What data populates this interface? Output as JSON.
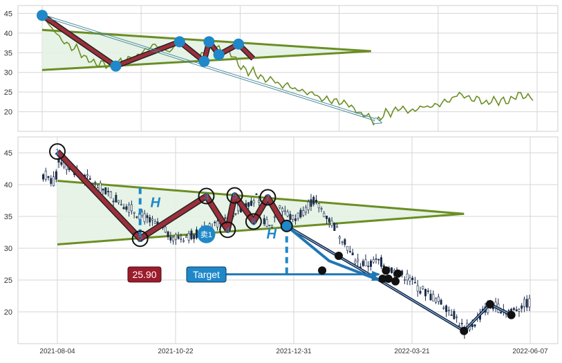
{
  "colors": {
    "line_green": "#6b8e23",
    "triangle_fill": "#e3f2e3",
    "zigzag_fill": "#9b2f3a",
    "marker_blue": "#1f88c9",
    "arrow_blue": "#1f77b4",
    "dark_marker": "#111111",
    "candle": "#1a2a4a",
    "grid": "#d5d5d5",
    "label_red_bg": "#9b1c2c",
    "label_blue_bg": "#1f88c9"
  },
  "chart_data": [
    {
      "type": "line",
      "name": "overview",
      "yticks": [
        20,
        25,
        30,
        35,
        40,
        45
      ],
      "ylim": [
        15,
        47
      ],
      "xlim": [
        0,
        100
      ],
      "price": [
        [
          0,
          44.5
        ],
        [
          1,
          43
        ],
        [
          2,
          41
        ],
        [
          3,
          40
        ],
        [
          4,
          38
        ],
        [
          5,
          37.5
        ],
        [
          6,
          36
        ],
        [
          7,
          36.5
        ],
        [
          8,
          34.5
        ],
        [
          9,
          33.5
        ],
        [
          10,
          33
        ],
        [
          11,
          32
        ],
        [
          12,
          32.5
        ],
        [
          13,
          31.8
        ],
        [
          14,
          32
        ],
        [
          15,
          31.5
        ],
        [
          16,
          33
        ],
        [
          17,
          32.5
        ],
        [
          18,
          34
        ],
        [
          19,
          33.5
        ],
        [
          20,
          35
        ],
        [
          21,
          35.5
        ],
        [
          22,
          36.5
        ],
        [
          23,
          37
        ],
        [
          24,
          36.5
        ],
        [
          25,
          36
        ],
        [
          26,
          35
        ],
        [
          27,
          37
        ],
        [
          28,
          38
        ],
        [
          29,
          37
        ],
        [
          30,
          35.5
        ],
        [
          31,
          34.5
        ],
        [
          32,
          34
        ],
        [
          33,
          35
        ],
        [
          34,
          36.5
        ],
        [
          35,
          37
        ],
        [
          36,
          36
        ],
        [
          37,
          35
        ],
        [
          38,
          35.5
        ],
        [
          39,
          34
        ],
        [
          40,
          32
        ],
        [
          41,
          31
        ],
        [
          42,
          30
        ],
        [
          43,
          30.5
        ],
        [
          44,
          29
        ],
        [
          45,
          28.5
        ],
        [
          46,
          28
        ],
        [
          47,
          28.5
        ],
        [
          48,
          27
        ],
        [
          49,
          26.5
        ],
        [
          50,
          27
        ],
        [
          51,
          26
        ],
        [
          52,
          25.5
        ],
        [
          53,
          25.5
        ],
        [
          54,
          24.5
        ],
        [
          55,
          25
        ],
        [
          56,
          24
        ],
        [
          57,
          23
        ],
        [
          58,
          23.5
        ],
        [
          59,
          22.5
        ],
        [
          60,
          23
        ],
        [
          61,
          22
        ],
        [
          62,
          22.5
        ],
        [
          63,
          21
        ],
        [
          64,
          20.5
        ],
        [
          65,
          19
        ],
        [
          66,
          19.5
        ],
        [
          67,
          18
        ],
        [
          68,
          17.2
        ],
        [
          69,
          18.5
        ],
        [
          70,
          20
        ],
        [
          71,
          19.5
        ],
        [
          72,
          20.5
        ],
        [
          73,
          21
        ],
        [
          74,
          20.5
        ],
        [
          75,
          20
        ],
        [
          76,
          20.5
        ],
        [
          77,
          21
        ],
        [
          78,
          21.5
        ],
        [
          79,
          21
        ],
        [
          80,
          22
        ],
        [
          81,
          21.5
        ],
        [
          82,
          23
        ],
        [
          83,
          22.5
        ],
        [
          84,
          24
        ],
        [
          85,
          24.5
        ],
        [
          86,
          24
        ],
        [
          87,
          23.5
        ],
        [
          88,
          23
        ],
        [
          89,
          23.5
        ],
        [
          90,
          22
        ],
        [
          91,
          22.5
        ],
        [
          92,
          23
        ],
        [
          93,
          22.5
        ],
        [
          94,
          23
        ],
        [
          95,
          22.5
        ],
        [
          96,
          23.5
        ],
        [
          97,
          24.5
        ],
        [
          98,
          24
        ],
        [
          99,
          23.8
        ],
        [
          100,
          23.5
        ]
      ],
      "upper_trendline": [
        [
          0,
          40.8
        ],
        [
          67,
          35.4
        ]
      ],
      "lower_trendline": [
        [
          0,
          30.6
        ],
        [
          67,
          35.4
        ]
      ],
      "zigzag": [
        [
          0,
          44.5
        ],
        [
          15,
          31.6
        ],
        [
          28,
          37.8
        ],
        [
          33,
          32.8
        ],
        [
          34,
          37.8
        ],
        [
          36,
          34.5
        ],
        [
          40,
          37.2
        ],
        [
          43,
          33.5
        ]
      ],
      "pivots": [
        [
          0,
          44.5
        ],
        [
          15,
          31.6
        ],
        [
          28,
          37.8
        ],
        [
          33,
          32.8
        ],
        [
          34,
          37.8
        ],
        [
          36,
          34.5
        ],
        [
          40,
          37.2
        ]
      ],
      "diagonal_arrow": [
        [
          0,
          44.5
        ],
        [
          69,
          17.5
        ]
      ]
    },
    {
      "type": "candlestick",
      "name": "detail",
      "xtick_labels": [
        "2021-08-04",
        "2021-10-22",
        "2021-12-31",
        "2022-03-21",
        "2022-06-07"
      ],
      "yticks": [
        20,
        25,
        30,
        35,
        40,
        45
      ],
      "ylim": [
        15,
        47.5
      ],
      "xlim": [
        0,
        100
      ],
      "trend_path": [
        [
          0,
          44
        ],
        [
          2,
          43
        ],
        [
          4,
          42
        ],
        [
          6,
          41
        ],
        [
          8,
          40
        ],
        [
          10,
          39
        ],
        [
          12,
          38
        ],
        [
          14,
          37
        ],
        [
          16,
          36
        ],
        [
          18,
          35
        ],
        [
          20,
          34
        ],
        [
          22,
          33
        ],
        [
          24,
          32
        ],
        [
          26,
          31.6
        ],
        [
          28,
          32
        ],
        [
          30,
          32.5
        ],
        [
          32,
          33
        ],
        [
          34,
          34
        ],
        [
          36,
          35
        ],
        [
          38,
          36
        ],
        [
          40,
          37
        ],
        [
          42,
          38
        ],
        [
          43,
          36
        ],
        [
          44,
          34
        ],
        [
          45,
          33.2
        ],
        [
          46,
          35
        ],
        [
          47,
          37
        ],
        [
          48,
          36
        ],
        [
          49,
          35
        ],
        [
          50,
          34.5
        ],
        [
          52,
          36
        ],
        [
          54,
          37.5
        ],
        [
          56,
          36
        ],
        [
          58,
          34
        ],
        [
          60,
          32
        ],
        [
          61,
          31
        ],
        [
          62,
          29
        ],
        [
          64,
          27.5
        ],
        [
          66,
          27.5
        ],
        [
          68,
          28
        ],
        [
          70,
          27
        ],
        [
          72,
          26
        ],
        [
          74,
          25.5
        ],
        [
          76,
          24
        ],
        [
          78,
          23
        ],
        [
          80,
          22
        ],
        [
          82,
          21
        ],
        [
          84,
          19.5
        ],
        [
          86,
          17.2
        ],
        [
          88,
          18
        ],
        [
          90,
          20
        ],
        [
          92,
          21
        ],
        [
          94,
          20.5
        ],
        [
          96,
          20
        ],
        [
          98,
          21
        ],
        [
          100,
          21.5
        ]
      ],
      "upper_trendline": [
        [
          0,
          40.6
        ],
        [
          86,
          35.4
        ]
      ],
      "lower_trendline": [
        [
          0,
          30.6
        ],
        [
          86,
          35.4
        ]
      ],
      "zigzag": [
        [
          0,
          45.2
        ],
        [
          17.5,
          31.5
        ],
        [
          31.5,
          38.2
        ],
        [
          36,
          32.9
        ],
        [
          37.5,
          38.3
        ],
        [
          41.5,
          34.2
        ],
        [
          44.5,
          38
        ],
        [
          48,
          33.6
        ]
      ],
      "numbered_pivots": [
        {
          "label": "1",
          "x": 0,
          "y": 45.2
        },
        {
          "label": "2",
          "x": 17.5,
          "y": 31.5
        },
        {
          "label": "3",
          "x": 31.5,
          "y": 38.2
        },
        {
          "label": "4",
          "x": 36,
          "y": 32.9
        },
        {
          "label": "5",
          "x": 37.5,
          "y": 38.3
        },
        {
          "label": "6",
          "x": 41.5,
          "y": 34.2
        },
        {
          "label": "7",
          "x": 44.5,
          "y": 38
        }
      ],
      "breakout_point": [
        48.5,
        33.5
      ],
      "projection_path": [
        [
          48.5,
          33.5
        ],
        [
          57.5,
          28
        ],
        [
          68,
          25
        ]
      ],
      "second_path": [
        [
          48.5,
          33.5
        ],
        [
          68,
          25
        ],
        [
          86,
          17
        ],
        [
          91.5,
          21.2
        ],
        [
          96,
          19.5
        ]
      ],
      "black_dots": [
        [
          56,
          26.5
        ],
        [
          59.5,
          28.8
        ],
        [
          68.8,
          25.2
        ],
        [
          69.5,
          26.5
        ],
        [
          70,
          25.2
        ],
        [
          71.5,
          24.8
        ],
        [
          72,
          26
        ],
        [
          86,
          17
        ],
        [
          91.5,
          21.2
        ],
        [
          96,
          19.5
        ]
      ],
      "height_markers": [
        {
          "label": "H",
          "x": 17.5,
          "y_top": 39.5,
          "y_bottom": 31.5
        },
        {
          "label": "H",
          "x": 48.5,
          "y_top": 33.5,
          "y_bottom": 25.5
        }
      ],
      "target_line_y": 25.9,
      "target_line_x": [
        35,
        68
      ],
      "sell_marker": {
        "label": "卖1",
        "x": 31.5,
        "y": 32.2
      },
      "price_label": "25.90",
      "target_label": "Target"
    }
  ]
}
